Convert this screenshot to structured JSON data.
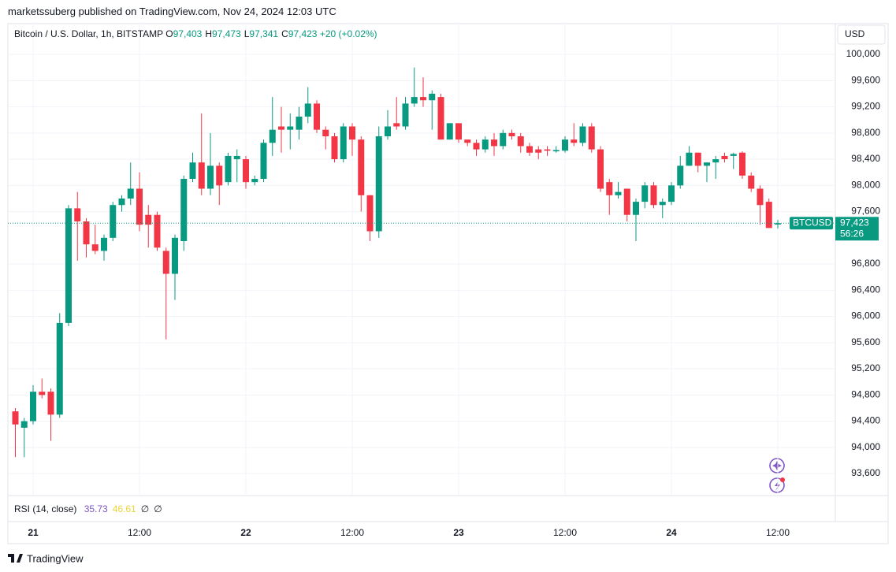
{
  "header": {
    "published": "marketssuberg published on TradingView.com, Nov 24, 2024 12:03 UTC",
    "footer": "TradingView"
  },
  "chart_data": {
    "type": "candlestick",
    "title": "Bitcoin / U.S. Dollar, 1h, BITSTAMP",
    "legend_values": [
      {
        "label": "O",
        "value": "97,403"
      },
      {
        "label": "H",
        "value": "97,473"
      },
      {
        "label": "L",
        "value": "97,341"
      },
      {
        "label": "C",
        "value": "97,423"
      }
    ],
    "change": "+20 (+0.02%)",
    "currency": "USD",
    "price_label": {
      "symbol": "BTCUSD",
      "price": "97,423",
      "countdown": "56:26"
    },
    "up_color": "#089981",
    "down_color": "#f23645",
    "grid": true,
    "categories": [
      null,
      null,
      "21",
      null,
      null,
      null,
      null,
      null,
      null,
      null,
      null,
      null,
      null,
      null,
      "12:00",
      null,
      null,
      null,
      null,
      null,
      null,
      null,
      null,
      null,
      null,
      null,
      "22",
      null,
      null,
      null,
      null,
      null,
      null,
      null,
      null,
      null,
      null,
      null,
      "12:00",
      null,
      null,
      null,
      null,
      null,
      null,
      null,
      null,
      null,
      null,
      null,
      "23",
      null,
      null,
      null,
      null,
      null,
      null,
      null,
      null,
      null,
      null,
      null,
      "12:00",
      null,
      null,
      null,
      null,
      null,
      null,
      null,
      null,
      null,
      null,
      null,
      "24",
      null,
      null,
      null,
      null,
      null,
      null,
      null,
      null,
      null,
      null,
      null,
      "12:00"
    ],
    "open": [
      94550,
      94300,
      94400,
      94850,
      94850,
      94500,
      95900,
      97650,
      97450,
      97100,
      97000,
      97200,
      97700,
      97800,
      97950,
      97550,
      97550,
      97000,
      96650,
      97150,
      98100,
      98350,
      97950,
      98300,
      98050,
      98400,
      98400,
      98050,
      98100,
      98650,
      98900,
      98850,
      98850,
      99050,
      99250,
      98850,
      98750,
      98400,
      98900,
      98700,
      97850,
      97300,
      98750,
      98950,
      98900,
      99250,
      99350,
      99300,
      99350,
      98700,
      98950,
      98700,
      98650,
      98550,
      98700,
      98600,
      98800,
      98750,
      98600,
      98550,
      98550,
      98520,
      98530,
      98700,
      98650,
      98900,
      98550,
      98050,
      97850,
      97950,
      97550,
      97750,
      98000,
      97700,
      97750,
      98000,
      98300,
      98500,
      98300,
      98350,
      98450,
      98450,
      98500,
      98150,
      97950,
      97750,
      97403
    ],
    "high": [
      94600,
      94450,
      94950,
      95050,
      94900,
      96050,
      97700,
      97900,
      97500,
      97400,
      97250,
      97750,
      97850,
      98350,
      98200,
      97700,
      97600,
      97050,
      97250,
      98150,
      98500,
      99100,
      98800,
      98350,
      98500,
      98550,
      98450,
      98150,
      98700,
      99350,
      99200,
      99100,
      99200,
      99500,
      99300,
      98900,
      98800,
      98950,
      98950,
      98750,
      97850,
      98900,
      99150,
      99350,
      99350,
      99800,
      99650,
      99450,
      99400,
      98950,
      98950,
      98700,
      98700,
      98750,
      98800,
      98850,
      98850,
      98800,
      98650,
      98600,
      98600,
      98600,
      98750,
      98950,
      98950,
      98950,
      98600,
      98100,
      98050,
      97950,
      97800,
      98050,
      98050,
      97800,
      98050,
      98450,
      98600,
      98500,
      98350,
      98450,
      98500,
      98500,
      98520,
      98200,
      98000,
      97800,
      97473
    ],
    "low": [
      93850,
      93850,
      94350,
      94750,
      94100,
      94450,
      95850,
      96850,
      96900,
      96950,
      96850,
      97150,
      97600,
      97700,
      97300,
      97050,
      97000,
      95650,
      96250,
      97000,
      98050,
      97850,
      97850,
      97700,
      98000,
      98050,
      97950,
      98000,
      98050,
      98450,
      98500,
      98550,
      98700,
      98950,
      98800,
      98550,
      98350,
      98350,
      98450,
      97600,
      97150,
      97200,
      98700,
      98850,
      98850,
      99200,
      99200,
      98850,
      98700,
      98700,
      98650,
      98600,
      98450,
      98500,
      98450,
      98550,
      98700,
      98500,
      98450,
      98400,
      98450,
      98500,
      98500,
      98600,
      98600,
      98500,
      97900,
      97550,
      97800,
      97450,
      97150,
      97650,
      97650,
      97500,
      97700,
      97950,
      98300,
      98200,
      98050,
      98100,
      98350,
      98250,
      98100,
      97900,
      97400,
      97350,
      97341
    ],
    "close": [
      94350,
      94400,
      94850,
      94800,
      94500,
      95900,
      97650,
      97450,
      97100,
      97000,
      97200,
      97700,
      97800,
      97950,
      97400,
      97400,
      97050,
      96650,
      97200,
      98100,
      98350,
      97950,
      98300,
      98000,
      98450,
      98450,
      98050,
      98100,
      98650,
      98850,
      98850,
      98900,
      99050,
      99250,
      98850,
      98750,
      98400,
      98900,
      98700,
      97850,
      97300,
      98750,
      98900,
      98900,
      99250,
      99350,
      99300,
      99400,
      98700,
      98950,
      98700,
      98650,
      98550,
      98700,
      98600,
      98800,
      98750,
      98600,
      98500,
      98500,
      98530,
      98540,
      98700,
      98650,
      98900,
      98550,
      97950,
      97850,
      97900,
      97550,
      97750,
      98000,
      97700,
      97750,
      98000,
      98300,
      98500,
      98300,
      98350,
      98400,
      98400,
      98480,
      98150,
      97950,
      97700,
      97350,
      97423
    ],
    "ylim": [
      93264,
      100470
    ],
    "yticks": [
      {
        "value": 93600,
        "label": "93,600"
      },
      {
        "value": 94000,
        "label": "94,000"
      },
      {
        "value": 94400,
        "label": "94,400"
      },
      {
        "value": 94800,
        "label": "94,800"
      },
      {
        "value": 95200,
        "label": "95,200"
      },
      {
        "value": 95600,
        "label": "95,600"
      },
      {
        "value": 96000,
        "label": "96,000"
      },
      {
        "value": 96400,
        "label": "96,400"
      },
      {
        "value": 96800,
        "label": "96,800"
      },
      {
        "value": 97600,
        "label": "97,600"
      },
      {
        "value": 98000,
        "label": "98,000"
      },
      {
        "value": 98400,
        "label": "98,400"
      },
      {
        "value": 98800,
        "label": "98,800"
      },
      {
        "value": 99200,
        "label": "99,200"
      },
      {
        "value": 99600,
        "label": "99,600"
      },
      {
        "value": 100000,
        "label": "100,000"
      }
    ],
    "rsi": {
      "label": "RSI (14, close)",
      "values": [
        "35.73",
        "46.61",
        "∅",
        "∅"
      ],
      "colors": [
        "#7e57c2",
        "#e8d53a",
        "#131722",
        "#131722"
      ]
    }
  }
}
